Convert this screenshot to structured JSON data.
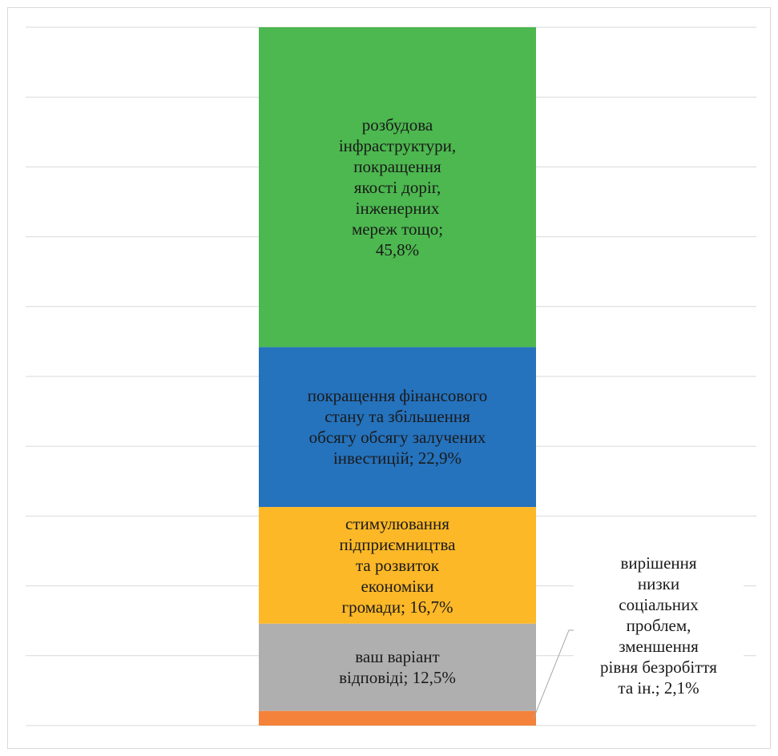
{
  "chart_data": {
    "type": "bar",
    "stacked": true,
    "percent": true,
    "title": "",
    "xlabel": "",
    "ylabel": "",
    "ylim": [
      0,
      100
    ],
    "grid": true,
    "legend": "none",
    "series": [
      {
        "label": "розбудова\nінфраструктури,\nпокращення\nякості доріг,\nінженерних\nмереж тощо;\n45,8%",
        "value": 45.8,
        "color": "#4cb84f"
      },
      {
        "label": "покращення фінансового\nстану та збільшення\nобсягу  обсягу залучених\nінвестицій; 22,9%",
        "value": 22.9,
        "color": "#2572bd"
      },
      {
        "label": "стимулювання\nпідприємництва\nта розвиток\nекономіки\nгромади; 16,7%",
        "value": 16.7,
        "color": "#fdb827"
      },
      {
        "label": "ваш варіант\nвідповіді; 12,5%",
        "value": 12.5,
        "color": "#afafaf"
      },
      {
        "label": "вирішення\nнизки\nсоціальних\nпроблем,\nзменшення\nрівня безробіття\nта ін.; 2,1%",
        "value": 2.1,
        "color": "#f4823a",
        "callout": true
      }
    ]
  }
}
